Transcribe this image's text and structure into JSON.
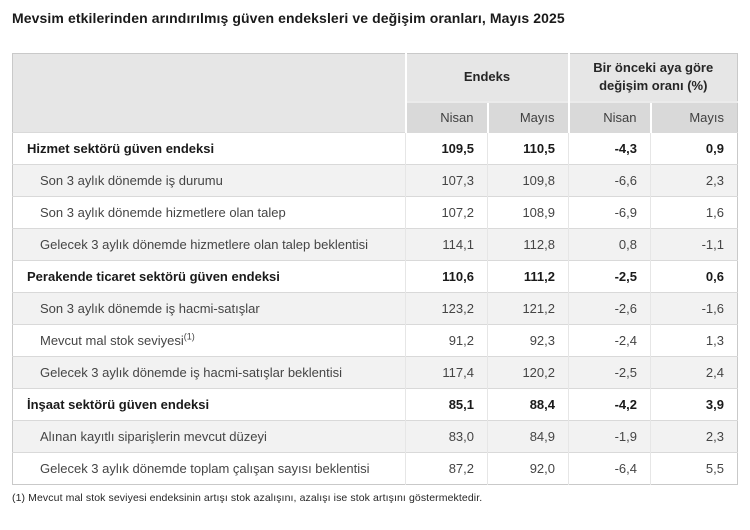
{
  "title": "Mevsim etkilerinden arındırılmış güven endeksleri ve değişim oranları, Mayıs 2025",
  "table": {
    "col_groups": [
      {
        "label": "Endeks"
      },
      {
        "label": "Bir önceki aya göre değişim oranı (%)"
      }
    ],
    "sub_headers": [
      "Nisan",
      "Mayıs",
      "Nisan",
      "Mayıs"
    ],
    "rows": [
      {
        "label": "Hizmet sektörü güven endeksi",
        "type": "section",
        "values": [
          "109,5",
          "110,5",
          "-4,3",
          "0,9"
        ]
      },
      {
        "label": "Son 3 aylık dönemde iş durumu",
        "type": "sub",
        "values": [
          "107,3",
          "109,8",
          "-6,6",
          "2,3"
        ]
      },
      {
        "label": "Son 3 aylık dönemde hizmetlere olan talep",
        "type": "sub",
        "values": [
          "107,2",
          "108,9",
          "-6,9",
          "1,6"
        ]
      },
      {
        "label": "Gelecek 3 aylık dönemde hizmetlere olan talep beklentisi",
        "type": "sub",
        "values": [
          "114,1",
          "112,8",
          "0,8",
          "-1,1"
        ]
      },
      {
        "label": "Perakende ticaret sektörü güven endeksi",
        "type": "section",
        "values": [
          "110,6",
          "111,2",
          "-2,5",
          "0,6"
        ]
      },
      {
        "label": "Son 3 aylık dönemde iş hacmi-satışlar",
        "type": "sub",
        "values": [
          "123,2",
          "121,2",
          "-2,6",
          "-1,6"
        ]
      },
      {
        "label": "Mevcut mal stok seviyesi",
        "label_sup": "(1)",
        "type": "sub",
        "values": [
          "91,2",
          "92,3",
          "-2,4",
          "1,3"
        ]
      },
      {
        "label": "Gelecek 3 aylık dönemde iş hacmi-satışlar beklentisi",
        "type": "sub",
        "values": [
          "117,4",
          "120,2",
          "-2,5",
          "2,4"
        ]
      },
      {
        "label": "İnşaat sektörü güven endeksi",
        "type": "section",
        "values": [
          "85,1",
          "88,4",
          "-4,2",
          "3,9"
        ]
      },
      {
        "label": "Alınan kayıtlı siparişlerin mevcut düzeyi",
        "type": "sub",
        "values": [
          "83,0",
          "84,9",
          "-1,9",
          "2,3"
        ]
      },
      {
        "label": "Gelecek 3 aylık dönemde toplam çalışan sayısı beklentisi",
        "type": "sub",
        "values": [
          "87,2",
          "92,0",
          "-6,4",
          "5,5"
        ]
      }
    ]
  },
  "footnote": "(1) Mevcut mal stok seviyesi endeksinin artışı stok azalışını, azalışı ise stok artışını göstermektedir.",
  "colors": {
    "header_bg": "#e6e6e6",
    "subheader_bg": "#d9d9d9",
    "stripe_bg": "#f2f2f2",
    "border": "#d9d9d9",
    "text": "#454545",
    "bold_text": "#1a1a1a"
  }
}
